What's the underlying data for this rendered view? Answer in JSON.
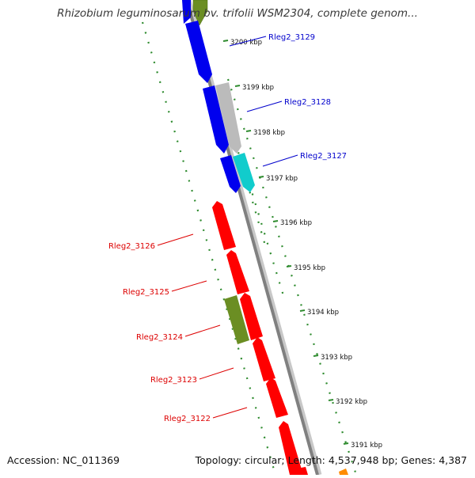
{
  "title": "Rhizobium leguminosarum bv. trifolii WSM2304, complete genom...",
  "footer": {
    "accession": "Accession: NC_011369",
    "summary": "Topology: circular; Length: 4,537,948 bp; Genes: 4,387"
  },
  "colors": {
    "backbone": "#808080",
    "gene_blue": "#0000ee",
    "gene_red": "#ff0000",
    "gene_gray": "#bbbbbb",
    "gene_cyan": "#11cccc",
    "gene_olive": "#6b8e23",
    "gene_orange": "#ff8c00",
    "tick_green": "#2e8b2e",
    "label_blue": "#0000cc",
    "label_red": "#dd0000"
  },
  "ruler": [
    {
      "label": "3200 kbp"
    },
    {
      "label": "3199 kbp"
    },
    {
      "label": "3198 kbp"
    },
    {
      "label": "3197 kbp"
    },
    {
      "label": "3196 kbp"
    },
    {
      "label": "3195 kbp"
    },
    {
      "label": "3194 kbp"
    },
    {
      "label": "3193 kbp"
    },
    {
      "label": "3192 kbp"
    },
    {
      "label": "3191 kbp"
    }
  ],
  "gene_labels": [
    {
      "name": "Rleg2_3129",
      "strand": "forward"
    },
    {
      "name": "Rleg2_3128",
      "strand": "forward"
    },
    {
      "name": "Rleg2_3127",
      "strand": "forward"
    },
    {
      "name": "Rleg2_3126",
      "strand": "reverse"
    },
    {
      "name": "Rleg2_3125",
      "strand": "reverse"
    },
    {
      "name": "Rleg2_3124",
      "strand": "reverse"
    },
    {
      "name": "Rleg2_3123",
      "strand": "reverse"
    },
    {
      "name": "Rleg2_3122",
      "strand": "reverse"
    }
  ]
}
